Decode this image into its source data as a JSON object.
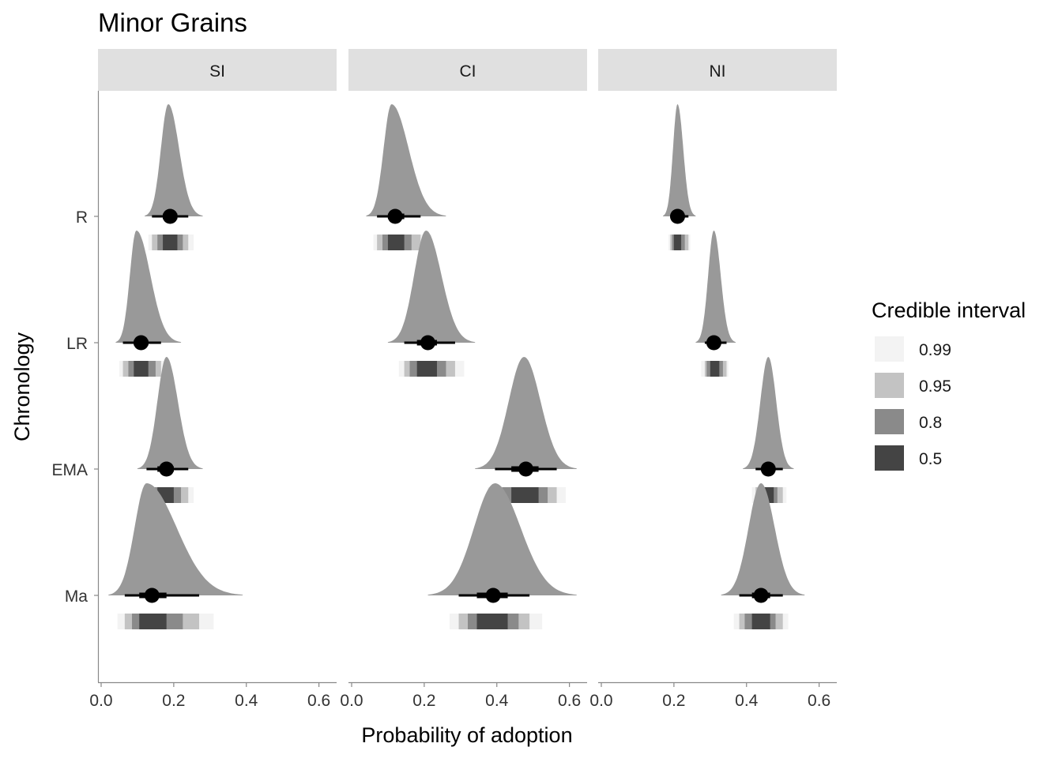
{
  "chart_data": {
    "type": "halfeye",
    "title": "Minor Grains",
    "xlabel": "Probability of adoption",
    "ylabel": "Chronology",
    "xlim": [
      0,
      0.6
    ],
    "x_ticks": [
      "0.0",
      "0.2",
      "0.4",
      "0.6"
    ],
    "y_categories": [
      "R",
      "LR",
      "EMA",
      "Ma"
    ],
    "panels": [
      "SI",
      "CI",
      "NI"
    ],
    "colors": {
      "density_fill": "#999999",
      "strip_0.99": "#f3f3f3",
      "strip_0.95": "#c3c3c3",
      "strip_0.8": "#8a8a8a",
      "strip_0.5": "#444444",
      "strip_gap": "#e8e8e8",
      "point": "#000000",
      "strip_bg": "#e0e0e0",
      "axis": "#888888",
      "text": "#333333"
    },
    "legend": {
      "title": "Credible interval",
      "position": "right",
      "items": [
        {
          "label": "0.99",
          "color": "#f3f3f3"
        },
        {
          "label": "0.95",
          "color": "#c3c3c3"
        },
        {
          "label": "0.8",
          "color": "#8a8a8a"
        },
        {
          "label": "0.5",
          "color": "#444444"
        }
      ]
    },
    "series": [
      {
        "panel": "SI",
        "period": "R",
        "median": 0.19,
        "ci50": [
          0.17,
          0.21
        ],
        "ci80": [
          0.155,
          0.225
        ],
        "ci95": [
          0.14,
          0.24
        ],
        "ci99": [
          0.13,
          0.255
        ],
        "mode": 0.185,
        "density_range": [
          0.12,
          0.28
        ],
        "skew": 0.15
      },
      {
        "panel": "SI",
        "period": "LR",
        "median": 0.11,
        "ci50": [
          0.09,
          0.13
        ],
        "ci80": [
          0.075,
          0.15
        ],
        "ci95": [
          0.06,
          0.165
        ],
        "ci99": [
          0.05,
          0.185
        ],
        "mode": 0.097,
        "density_range": [
          0.04,
          0.22
        ],
        "skew": 0.35
      },
      {
        "panel": "SI",
        "period": "EMA",
        "median": 0.18,
        "ci50": [
          0.155,
          0.2
        ],
        "ci80": [
          0.14,
          0.22
        ],
        "ci95": [
          0.125,
          0.24
        ],
        "ci99": [
          0.115,
          0.255
        ],
        "mode": 0.18,
        "density_range": [
          0.1,
          0.28
        ],
        "skew": 0.2
      },
      {
        "panel": "SI",
        "period": "Ma",
        "median": 0.14,
        "ci50": [
          0.105,
          0.18
        ],
        "ci80": [
          0.085,
          0.225
        ],
        "ci95": [
          0.065,
          0.27
        ],
        "ci99": [
          0.045,
          0.31
        ],
        "mode": 0.125,
        "density_range": [
          0.02,
          0.39
        ],
        "skew": 0.55
      },
      {
        "panel": "CI",
        "period": "R",
        "median": 0.12,
        "ci50": [
          0.1,
          0.145
        ],
        "ci80": [
          0.085,
          0.165
        ],
        "ci95": [
          0.07,
          0.19
        ],
        "ci99": [
          0.06,
          0.22
        ],
        "mode": 0.11,
        "density_range": [
          0.04,
          0.26
        ],
        "skew": 0.4
      },
      {
        "panel": "CI",
        "period": "LR",
        "median": 0.21,
        "ci50": [
          0.18,
          0.235
        ],
        "ci80": [
          0.16,
          0.26
        ],
        "ci95": [
          0.145,
          0.285
        ],
        "ci99": [
          0.13,
          0.31
        ],
        "mode": 0.205,
        "density_range": [
          0.1,
          0.34
        ],
        "skew": 0.2
      },
      {
        "panel": "CI",
        "period": "EMA",
        "median": 0.48,
        "ci50": [
          0.44,
          0.515
        ],
        "ci80": [
          0.415,
          0.54
        ],
        "ci95": [
          0.395,
          0.565
        ],
        "ci99": [
          0.375,
          0.59
        ],
        "mode": 0.475,
        "density_range": [
          0.34,
          0.62
        ],
        "skew": 0.1
      },
      {
        "panel": "CI",
        "period": "Ma",
        "median": 0.39,
        "ci50": [
          0.345,
          0.43
        ],
        "ci80": [
          0.32,
          0.46
        ],
        "ci95": [
          0.295,
          0.49
        ],
        "ci99": [
          0.27,
          0.525
        ],
        "mode": 0.395,
        "density_range": [
          0.21,
          0.62
        ],
        "skew": 0.3
      },
      {
        "panel": "NI",
        "period": "R",
        "median": 0.21,
        "ci50": [
          0.2,
          0.22
        ],
        "ci80": [
          0.195,
          0.23
        ],
        "ci95": [
          0.19,
          0.24
        ],
        "ci99": [
          0.185,
          0.245
        ],
        "mode": 0.21,
        "density_range": [
          0.17,
          0.26
        ],
        "skew": 0.2
      },
      {
        "panel": "NI",
        "period": "LR",
        "median": 0.31,
        "ci50": [
          0.3,
          0.325
        ],
        "ci80": [
          0.29,
          0.335
        ],
        "ci95": [
          0.285,
          0.345
        ],
        "ci99": [
          0.275,
          0.35
        ],
        "mode": 0.31,
        "density_range": [
          0.26,
          0.37
        ],
        "skew": 0.2
      },
      {
        "panel": "NI",
        "period": "EMA",
        "median": 0.46,
        "ci50": [
          0.445,
          0.475
        ],
        "ci80": [
          0.435,
          0.485
        ],
        "ci95": [
          0.425,
          0.5
        ],
        "ci99": [
          0.415,
          0.51
        ],
        "mode": 0.46,
        "density_range": [
          0.39,
          0.53
        ],
        "skew": 0.15
      },
      {
        "panel": "NI",
        "period": "Ma",
        "median": 0.44,
        "ci50": [
          0.415,
          0.465
        ],
        "ci80": [
          0.395,
          0.48
        ],
        "ci95": [
          0.38,
          0.5
        ],
        "ci99": [
          0.365,
          0.515
        ],
        "mode": 0.44,
        "density_range": [
          0.33,
          0.56
        ],
        "skew": 0.2
      }
    ]
  }
}
